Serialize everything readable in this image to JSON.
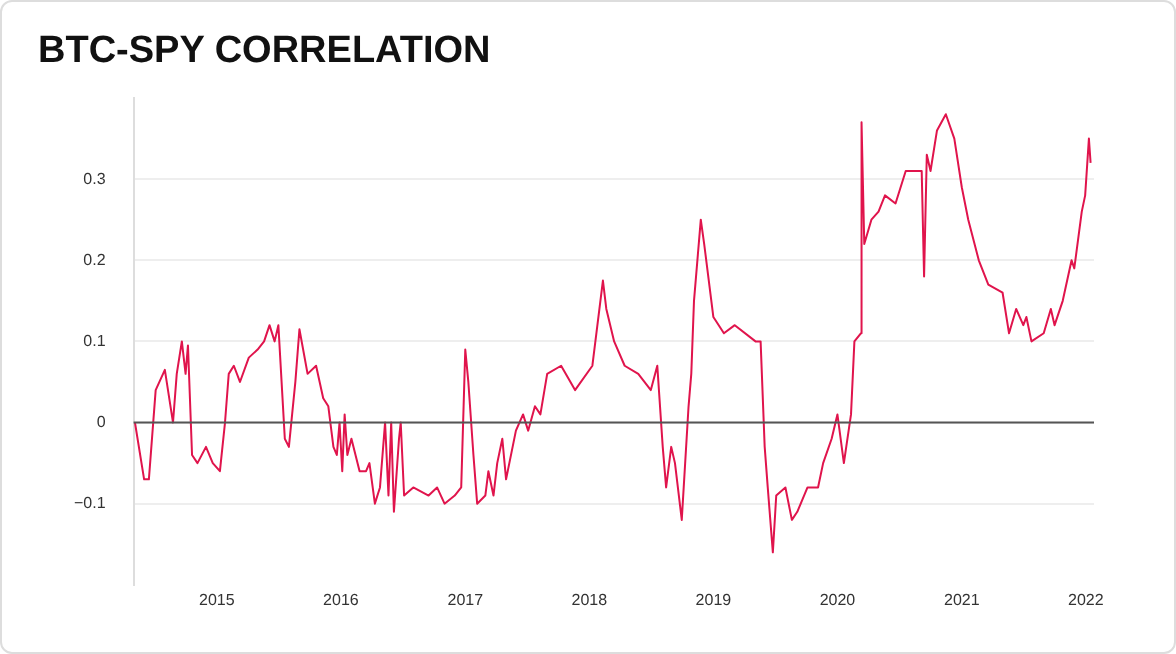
{
  "chart_data": {
    "type": "line",
    "title": "BTC-SPY CORRELATION",
    "x": [
      "2014-05-05",
      "2014-06-01",
      "2014-06-15",
      "2014-07-05",
      "2014-08-01",
      "2014-08-25",
      "2014-09-05",
      "2014-09-20",
      "2014-10-01",
      "2014-10-08",
      "2014-10-20",
      "2014-11-05",
      "2014-11-30",
      "2014-12-20",
      "2015-01-10",
      "2015-01-25",
      "2015-02-05",
      "2015-02-20",
      "2015-03-10",
      "2015-04-05",
      "2015-05-01",
      "2015-05-20",
      "2015-06-05",
      "2015-06-20",
      "2015-07-01",
      "2015-07-20",
      "2015-08-01",
      "2015-08-20",
      "2015-09-01",
      "2015-09-25",
      "2015-10-20",
      "2015-11-10",
      "2015-11-25",
      "2015-12-10",
      "2015-12-20",
      "2015-12-28",
      "2016-01-05",
      "2016-01-12",
      "2016-01-20",
      "2016-02-01",
      "2016-02-25",
      "2016-03-15",
      "2016-03-25",
      "2016-04-10",
      "2016-04-25",
      "2016-05-10",
      "2016-05-20",
      "2016-05-28",
      "2016-06-05",
      "2016-06-20",
      "2016-06-25",
      "2016-07-05",
      "2016-08-01",
      "2016-09-15",
      "2016-10-10",
      "2016-11-01",
      "2016-12-01",
      "2016-12-20",
      "2017-01-01",
      "2017-01-10",
      "2017-01-25",
      "2017-02-05",
      "2017-03-01",
      "2017-03-10",
      "2017-03-25",
      "2017-04-05",
      "2017-04-20",
      "2017-05-01",
      "2017-05-30",
      "2017-06-20",
      "2017-07-05",
      "2017-07-25",
      "2017-08-10",
      "2017-08-30",
      "2017-10-10",
      "2017-11-20",
      "2018-01-10",
      "2018-02-10",
      "2018-02-20",
      "2018-03-15",
      "2018-04-15",
      "2018-05-25",
      "2018-07-01",
      "2018-07-20",
      "2018-08-05",
      "2018-08-15",
      "2018-08-30",
      "2018-09-10",
      "2018-09-30",
      "2018-10-20",
      "2018-10-28",
      "2018-11-05",
      "2018-11-25",
      "2018-12-05",
      "2019-01-01",
      "2019-02-01",
      "2019-03-05",
      "2019-05-05",
      "2019-05-20",
      "2019-06-01",
      "2019-06-10",
      "2019-06-25",
      "2019-07-05",
      "2019-08-01",
      "2019-08-20",
      "2019-09-05",
      "2019-10-05",
      "2019-11-05",
      "2019-11-20",
      "2019-12-15",
      "2020-01-01",
      "2020-01-20",
      "2020-02-10",
      "2020-02-20",
      "2020-03-10",
      "2020-03-12",
      "2020-03-20",
      "2020-04-10",
      "2020-05-01",
      "2020-05-20",
      "2020-06-20",
      "2020-07-20",
      "2020-09-05",
      "2020-09-12",
      "2020-09-20",
      "2020-10-01",
      "2020-10-20",
      "2020-11-15",
      "2020-12-10",
      "2021-01-01",
      "2021-01-20",
      "2021-02-20",
      "2021-03-20",
      "2021-05-01",
      "2021-05-20",
      "2021-06-10",
      "2021-07-01",
      "2021-07-10",
      "2021-07-25",
      "2021-08-30",
      "2021-09-20",
      "2021-10-01",
      "2021-10-25",
      "2021-11-20",
      "2021-11-28",
      "2021-12-20",
      "2021-12-30",
      "2022-01-10",
      "2022-01-15"
    ],
    "series": [
      {
        "color": "#e0144c",
        "values": [
          0,
          -0.07,
          -0.07,
          0.04,
          0.065,
          0,
          0.06,
          0.1,
          0.06,
          0.095,
          -0.04,
          -0.05,
          -0.03,
          -0.05,
          -0.06,
          0,
          0.06,
          0.07,
          0.05,
          0.08,
          0.09,
          0.1,
          0.12,
          0.1,
          0.12,
          -0.02,
          -0.03,
          0.05,
          0.115,
          0.06,
          0.07,
          0.03,
          0.02,
          -0.03,
          -0.04,
          0,
          -0.06,
          0.01,
          -0.04,
          -0.02,
          -0.06,
          -0.06,
          -0.05,
          -0.1,
          -0.08,
          0,
          -0.09,
          0,
          -0.11,
          -0.02,
          0,
          -0.09,
          -0.08,
          -0.09,
          -0.08,
          -0.1,
          -0.09,
          -0.08,
          0.09,
          0.05,
          -0.04,
          -0.1,
          -0.09,
          -0.06,
          -0.09,
          -0.05,
          -0.02,
          -0.07,
          -0.01,
          0.01,
          -0.01,
          0.02,
          0.01,
          0.06,
          0.07,
          0.04,
          0.07,
          0.175,
          0.14,
          0.1,
          0.07,
          0.06,
          0.04,
          0.07,
          -0.03,
          -0.08,
          -0.03,
          -0.05,
          -0.12,
          0.02,
          0.06,
          0.15,
          0.25,
          0.22,
          0.13,
          0.11,
          0.12,
          0.1,
          0.1,
          -0.03,
          -0.08,
          -0.16,
          -0.09,
          -0.08,
          -0.12,
          -0.11,
          -0.08,
          -0.08,
          -0.05,
          -0.02,
          0.01,
          -0.05,
          0.01,
          0.1,
          0.11,
          0.37,
          0.22,
          0.25,
          0.26,
          0.28,
          0.27,
          0.31,
          0.31,
          0.18,
          0.33,
          0.31,
          0.36,
          0.38,
          0.35,
          0.29,
          0.25,
          0.2,
          0.17,
          0.16,
          0.11,
          0.14,
          0.12,
          0.13,
          0.1,
          0.11,
          0.14,
          0.12,
          0.15,
          0.2,
          0.19,
          0.26,
          0.28,
          0.35,
          0.32
        ]
      }
    ],
    "xlim": [
      "2014-05-01",
      "2022-01-25"
    ],
    "xticks": [
      {
        "value": "2015-01-01",
        "label": "2015"
      },
      {
        "value": "2016-01-01",
        "label": "2016"
      },
      {
        "value": "2017-01-01",
        "label": "2017"
      },
      {
        "value": "2018-01-01",
        "label": "2018"
      },
      {
        "value": "2019-01-01",
        "label": "2019"
      },
      {
        "value": "2020-01-01",
        "label": "2020"
      },
      {
        "value": "2021-01-01",
        "label": "2021"
      },
      {
        "value": "2022-01-01",
        "label": "2022"
      }
    ],
    "ylim": [
      -0.2,
      0.4
    ],
    "yticks": [
      {
        "value": -0.1,
        "label": "−0.1"
      },
      0,
      0.1,
      0.2,
      0.3
    ],
    "ref_lines": [
      {
        "axis": "y",
        "value": 0,
        "color": "#555555"
      }
    ],
    "grid": "y",
    "marker": "none",
    "line_style": "solid"
  }
}
